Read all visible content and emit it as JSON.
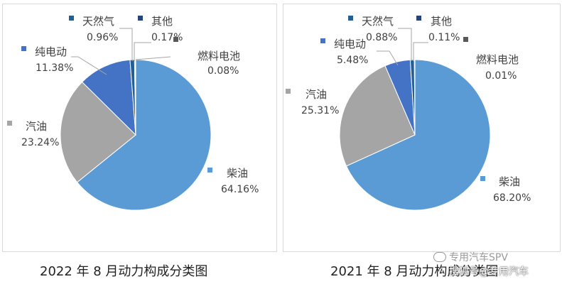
{
  "colors": {
    "diesel": "#5b9bd5",
    "gasoline": "#a5a5a5",
    "electric": "#4472c4",
    "natural_gas": "#255e91",
    "fuel_cell": "#595959",
    "other": "#264478"
  },
  "chart_data": [
    {
      "type": "pie",
      "caption": "2022 年 8 月动力构成分类图",
      "slices": [
        {
          "key": "diesel",
          "name": "柴油",
          "value": 64.16,
          "label": "64.16%"
        },
        {
          "key": "gasoline",
          "name": "汽油",
          "value": 23.24,
          "label": "23.24%"
        },
        {
          "key": "electric",
          "name": "纯电动",
          "value": 11.38,
          "label": "11.38%"
        },
        {
          "key": "natural_gas",
          "name": "天然气",
          "value": 0.96,
          "label": "0.96%"
        },
        {
          "key": "other",
          "name": "其他",
          "value": 0.17,
          "label": "0.17%"
        },
        {
          "key": "fuel_cell",
          "name": "燃料电池",
          "value": 0.08,
          "label": "0.08%"
        }
      ]
    },
    {
      "type": "pie",
      "caption": "2021 年 8 月动力构成分类图",
      "slices": [
        {
          "key": "diesel",
          "name": "柴油",
          "value": 68.2,
          "label": "68.20%"
        },
        {
          "key": "gasoline",
          "name": "汽油",
          "value": 25.31,
          "label": "25.31%"
        },
        {
          "key": "electric",
          "name": "纯电动",
          "value": 5.48,
          "label": "5.48%"
        },
        {
          "key": "natural_gas",
          "name": "天然气",
          "value": 0.88,
          "label": "0.88%"
        },
        {
          "key": "other",
          "name": "其他",
          "value": 0.11,
          "label": "0.11%"
        },
        {
          "key": "fuel_cell",
          "name": "燃料电池",
          "value": 0.01,
          "label": "0.01%"
        }
      ]
    }
  ],
  "watermark": {
    "line1": "专用汽车SPV",
    "line2": "搜狐号@专用汽车"
  }
}
